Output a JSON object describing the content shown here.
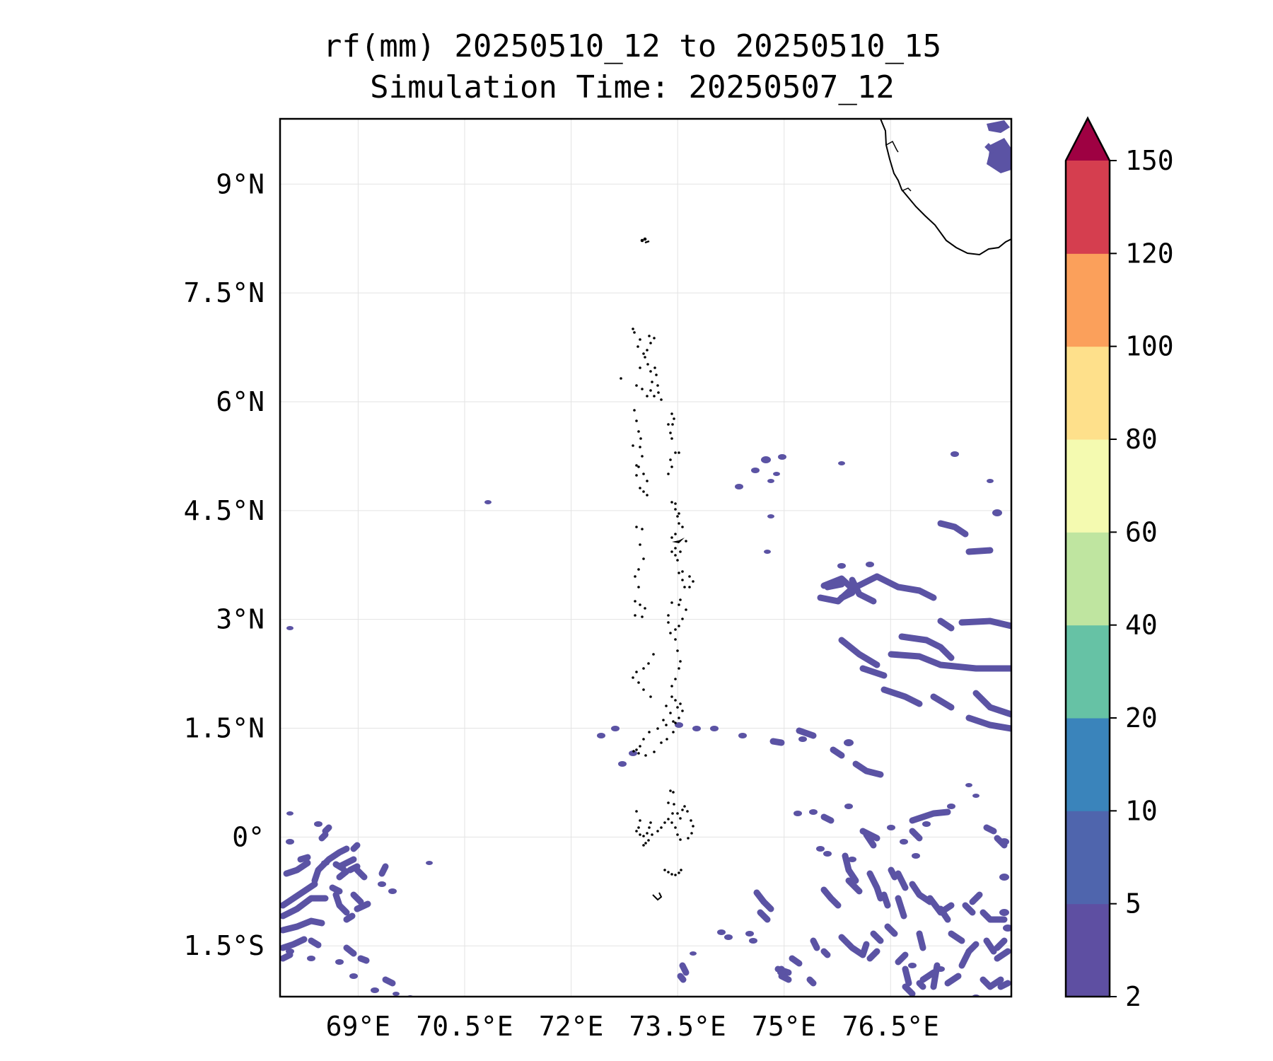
{
  "title": {
    "line1": "rf(mm) 20250510_12 to 20250510_15",
    "line2": "Simulation Time: 20250507_12"
  },
  "map": {
    "lon_range": [
      67.9,
      78.2
    ],
    "lat_range": [
      -2.2,
      9.9
    ],
    "x_ticks": [
      {
        "value": 69.0,
        "label": "69°E"
      },
      {
        "value": 70.5,
        "label": "70.5°E"
      },
      {
        "value": 72.0,
        "label": "72°E"
      },
      {
        "value": 73.5,
        "label": "73.5°E"
      },
      {
        "value": 75.0,
        "label": "75°E"
      },
      {
        "value": 76.5,
        "label": "76.5°E"
      }
    ],
    "y_ticks": [
      {
        "value": 9.0,
        "label": "9°N"
      },
      {
        "value": 7.5,
        "label": "7.5°N"
      },
      {
        "value": 6.0,
        "label": "6°N"
      },
      {
        "value": 4.5,
        "label": "4.5°N"
      },
      {
        "value": 3.0,
        "label": "3°N"
      },
      {
        "value": 1.5,
        "label": "1.5°N"
      },
      {
        "value": 0.0,
        "label": "0°"
      },
      {
        "value": -1.5,
        "label": "1.5°S"
      }
    ],
    "grid": true,
    "rain_color": "#5b53a4",
    "coast_color": "#000000"
  },
  "colorbar": {
    "extend": "max",
    "levels": [
      {
        "label": "2",
        "color": "#5e4fa2"
      },
      {
        "label": "5",
        "color": "#4f65ad"
      },
      {
        "label": "10",
        "color": "#3a84bb"
      },
      {
        "label": "20",
        "color": "#66c2a5"
      },
      {
        "label": "40",
        "color": "#bfe5a0"
      },
      {
        "label": "60",
        "color": "#f4fab0"
      },
      {
        "label": "80",
        "color": "#fee08b"
      },
      {
        "label": "100",
        "color": "#fba05b"
      },
      {
        "label": "120",
        "color": "#d53e4f"
      },
      {
        "label": "150",
        "color": "#9e0142"
      }
    ]
  }
}
